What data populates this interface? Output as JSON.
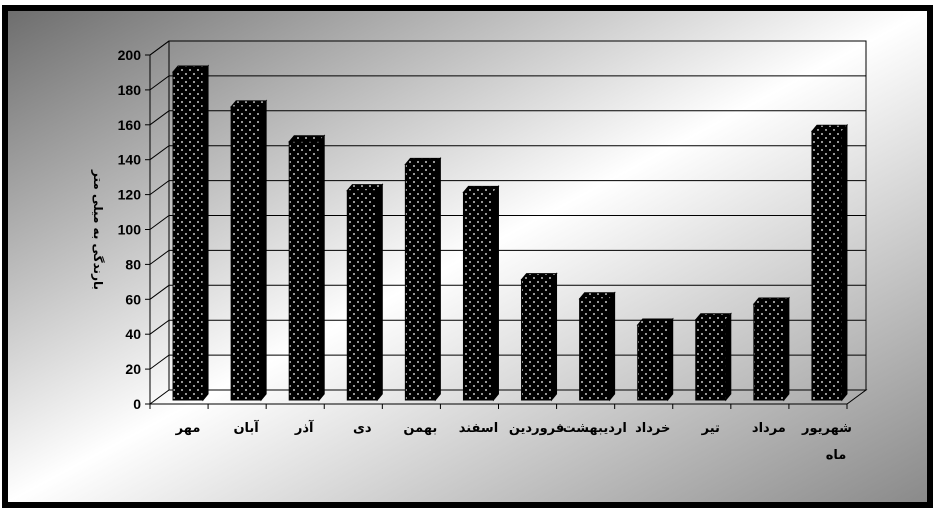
{
  "chart_data": {
    "type": "bar",
    "categories": [
      "مهر",
      "آبان",
      "آذر",
      "دی",
      "بهمن",
      "اسفند",
      "فروردین",
      "اردیبهشت",
      "خرداد",
      "تیر",
      "مرداد",
      "شهریور"
    ],
    "values": [
      188,
      168,
      148,
      120,
      135,
      119,
      69,
      58,
      43,
      46,
      55,
      154
    ],
    "xlabel": "ماه",
    "ylabel": "بارندگی به میلی متر",
    "ylim": [
      0,
      200
    ],
    "yticks": [
      "0",
      "20",
      "40",
      "60",
      "80",
      "100",
      "120",
      "140",
      "160",
      "180",
      "200"
    ],
    "grid": true,
    "legend": "none",
    "colors": {
      "bar": "#000000",
      "bar_dots": "#ffffff",
      "frame": "#000000",
      "plot_gradient_dark": "#6e6e6e",
      "plot_gradient_light": "#ffffff"
    }
  }
}
